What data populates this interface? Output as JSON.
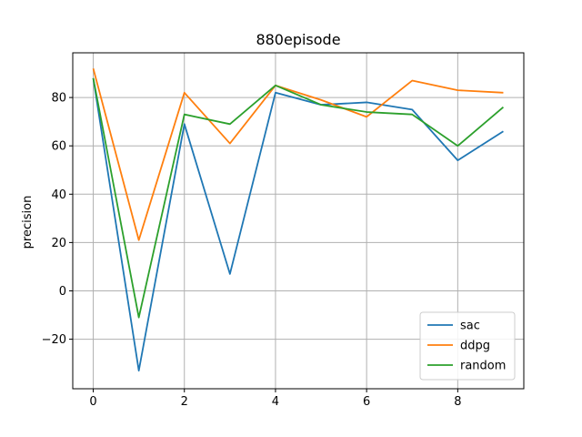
{
  "chart_data": {
    "type": "line",
    "title": "880episode",
    "xlabel": "",
    "ylabel": "precision",
    "x": [
      0,
      1,
      2,
      3,
      4,
      5,
      6,
      7,
      8,
      9
    ],
    "xlim": [
      -0.45,
      9.45
    ],
    "ylim": [
      -40.5,
      98.5
    ],
    "xticks": [
      0,
      2,
      4,
      6,
      8
    ],
    "yticks": [
      -20,
      0,
      20,
      40,
      60,
      80
    ],
    "grid": true,
    "legend_position": "lower-right",
    "series": [
      {
        "name": "sac",
        "color": "#1f77b4",
        "values": [
          88,
          -33,
          69,
          7,
          82,
          77,
          78,
          75,
          54,
          66
        ]
      },
      {
        "name": "ddpg",
        "color": "#ff7f0e",
        "values": [
          92,
          21,
          82,
          61,
          85,
          79,
          72,
          87,
          83,
          82
        ]
      },
      {
        "name": "random",
        "color": "#2ca02c",
        "values": [
          88,
          -11,
          73,
          69,
          85,
          77,
          74,
          73,
          60,
          76
        ]
      }
    ]
  }
}
